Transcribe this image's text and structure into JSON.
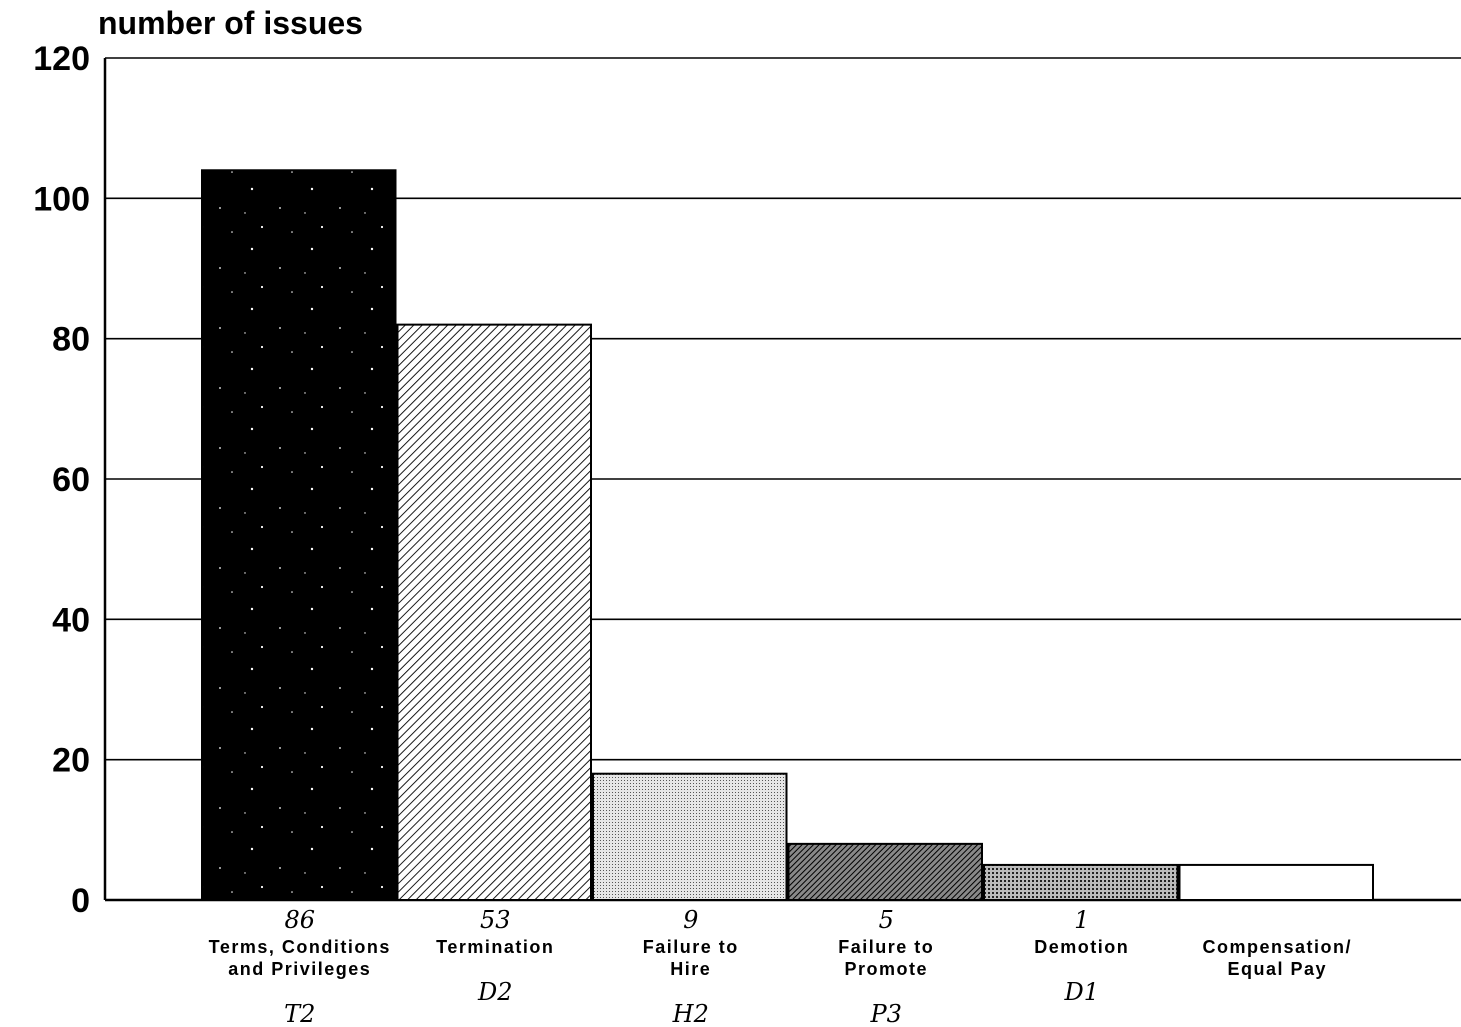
{
  "chart_data": {
    "type": "bar",
    "ylabel": "number of issues",
    "xlabel": "",
    "ylim": [
      0,
      120
    ],
    "yticks": [
      "0",
      "20",
      "40",
      "60",
      "80",
      "100",
      "120"
    ],
    "grid": true,
    "categories": [
      [
        "Terms, Conditions",
        "and Privileges"
      ],
      [
        "Termination"
      ],
      [
        "Failure to",
        "Hire"
      ],
      [
        "Failure to",
        "Promote"
      ],
      [
        "Demotion"
      ],
      [
        "Compensation/",
        "Equal Pay"
      ]
    ],
    "values": [
      104,
      82,
      18,
      8,
      5,
      5
    ],
    "fills": [
      "stars",
      "diag-hatch",
      "fine-dots",
      "dark-hatch",
      "grid",
      "white"
    ],
    "handwritten_counts": [
      "86",
      "53",
      "9",
      "5",
      "1",
      ""
    ],
    "handwritten_codes": [
      "T2",
      "D2",
      "H2",
      "P3",
      "D1",
      ""
    ]
  }
}
